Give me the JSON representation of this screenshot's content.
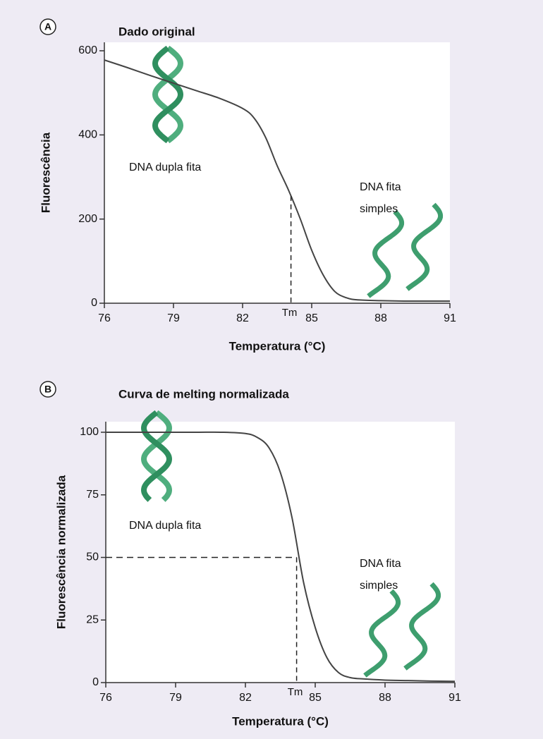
{
  "chart_data": [
    {
      "type": "line",
      "panel": "A",
      "title": "Dado original",
      "x_label": "Temperatura (°C)",
      "y_label": "Fluorescência",
      "x": [
        76,
        77,
        78,
        79,
        80,
        81,
        82,
        82.5,
        83,
        83.5,
        84,
        84.5,
        85,
        85.5,
        86,
        86.5,
        87,
        88,
        89,
        90,
        91
      ],
      "values": [
        578,
        560,
        541,
        523,
        505,
        487,
        463,
        440,
        394,
        327,
        268,
        201,
        126,
        67,
        28,
        13,
        8,
        6,
        5,
        5,
        5
      ],
      "color": "#444444",
      "xlim": [
        76,
        91
      ],
      "xticks": [
        76,
        79,
        82,
        85,
        88,
        91
      ],
      "ylim": [
        0,
        600
      ],
      "yticks": [
        0,
        200,
        400,
        600
      ],
      "reference": {
        "label": "Tm",
        "x": 84.1,
        "y": 255
      },
      "annotations": [
        "DNA dupla fita",
        "DNA fita",
        "simples"
      ]
    },
    {
      "type": "line",
      "panel": "B",
      "title": "Curva de melting normalizada",
      "x_label": "Temperatura (°C)",
      "y_label": "Fluorescência normalizada",
      "x": [
        76,
        77,
        78,
        79,
        80,
        81,
        82,
        82.5,
        83,
        83.5,
        84,
        84.5,
        85,
        85.5,
        86,
        86.5,
        87,
        88,
        89,
        90,
        91
      ],
      "values": [
        100,
        100,
        100,
        100,
        100,
        100,
        99.5,
        98,
        94,
        84,
        66,
        40,
        22,
        10,
        4,
        2,
        1.5,
        1,
        0.8,
        0.6,
        0.5
      ],
      "color": "#444444",
      "xlim": [
        76,
        91
      ],
      "xticks": [
        76,
        79,
        82,
        85,
        88,
        91
      ],
      "ylim": [
        0,
        100
      ],
      "yticks": [
        0,
        25,
        50,
        75,
        100
      ],
      "reference": {
        "label": "Tm",
        "x": 84.2,
        "y": 50
      },
      "annotations": [
        "DNA dupla fita",
        "DNA fita",
        "simples"
      ]
    }
  ]
}
